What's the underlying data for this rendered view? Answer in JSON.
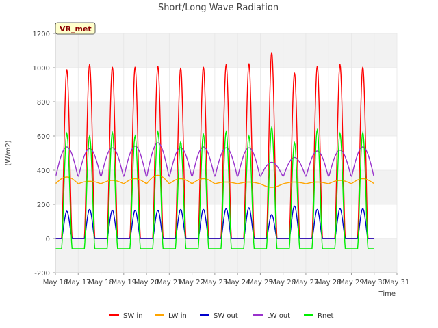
{
  "chart_data": {
    "type": "line",
    "title": "Short/Long Wave Radiation",
    "badge": "VR_met",
    "xlabel": "Time",
    "ylabel": "(W/m2)",
    "ylim": [
      -200,
      1200
    ],
    "yticks": [
      -200,
      0,
      200,
      400,
      600,
      800,
      1000,
      1200
    ],
    "xlim": [
      16,
      31
    ],
    "xticks": [
      16,
      17,
      18,
      19,
      20,
      21,
      22,
      23,
      24,
      25,
      26,
      27,
      28,
      29,
      30,
      31
    ],
    "xtick_labels": [
      "May 16",
      "May 17",
      "May 18",
      "May 19",
      "May 20",
      "May 21",
      "May 22",
      "May 23",
      "May 24",
      "May 25",
      "May 26",
      "May 27",
      "May 28",
      "May 29",
      "May 30",
      "May 31"
    ],
    "grid": true,
    "legend_position": "bottom",
    "series": [
      {
        "name": "SW in",
        "color": "#ff0000",
        "peaks": [
          990,
          1020,
          1005,
          1005,
          1010,
          1000,
          1005,
          1020,
          1025,
          1090,
          970,
          1010,
          1020,
          1005
        ],
        "night": 0
      },
      {
        "name": "LW in",
        "color": "#ffa500",
        "peaks": [
          360,
          335,
          340,
          350,
          370,
          350,
          350,
          330,
          330,
          300,
          330,
          330,
          340,
          350
        ],
        "night": 320
      },
      {
        "name": "SW out",
        "color": "#0000cc",
        "peaks": [
          160,
          170,
          165,
          165,
          165,
          170,
          170,
          175,
          180,
          140,
          190,
          170,
          175,
          175
        ],
        "night": 0
      },
      {
        "name": "LW out",
        "color": "#9932cc",
        "peaks": [
          545,
          535,
          540,
          550,
          570,
          540,
          545,
          540,
          540,
          450,
          480,
          520,
          525,
          545
        ],
        "night": 365
      },
      {
        "name": "Rnet",
        "color": "#00ee00",
        "peaks": [
          615,
          600,
          620,
          600,
          625,
          565,
          610,
          625,
          600,
          650,
          560,
          635,
          615,
          620
        ],
        "night": -60
      }
    ]
  }
}
